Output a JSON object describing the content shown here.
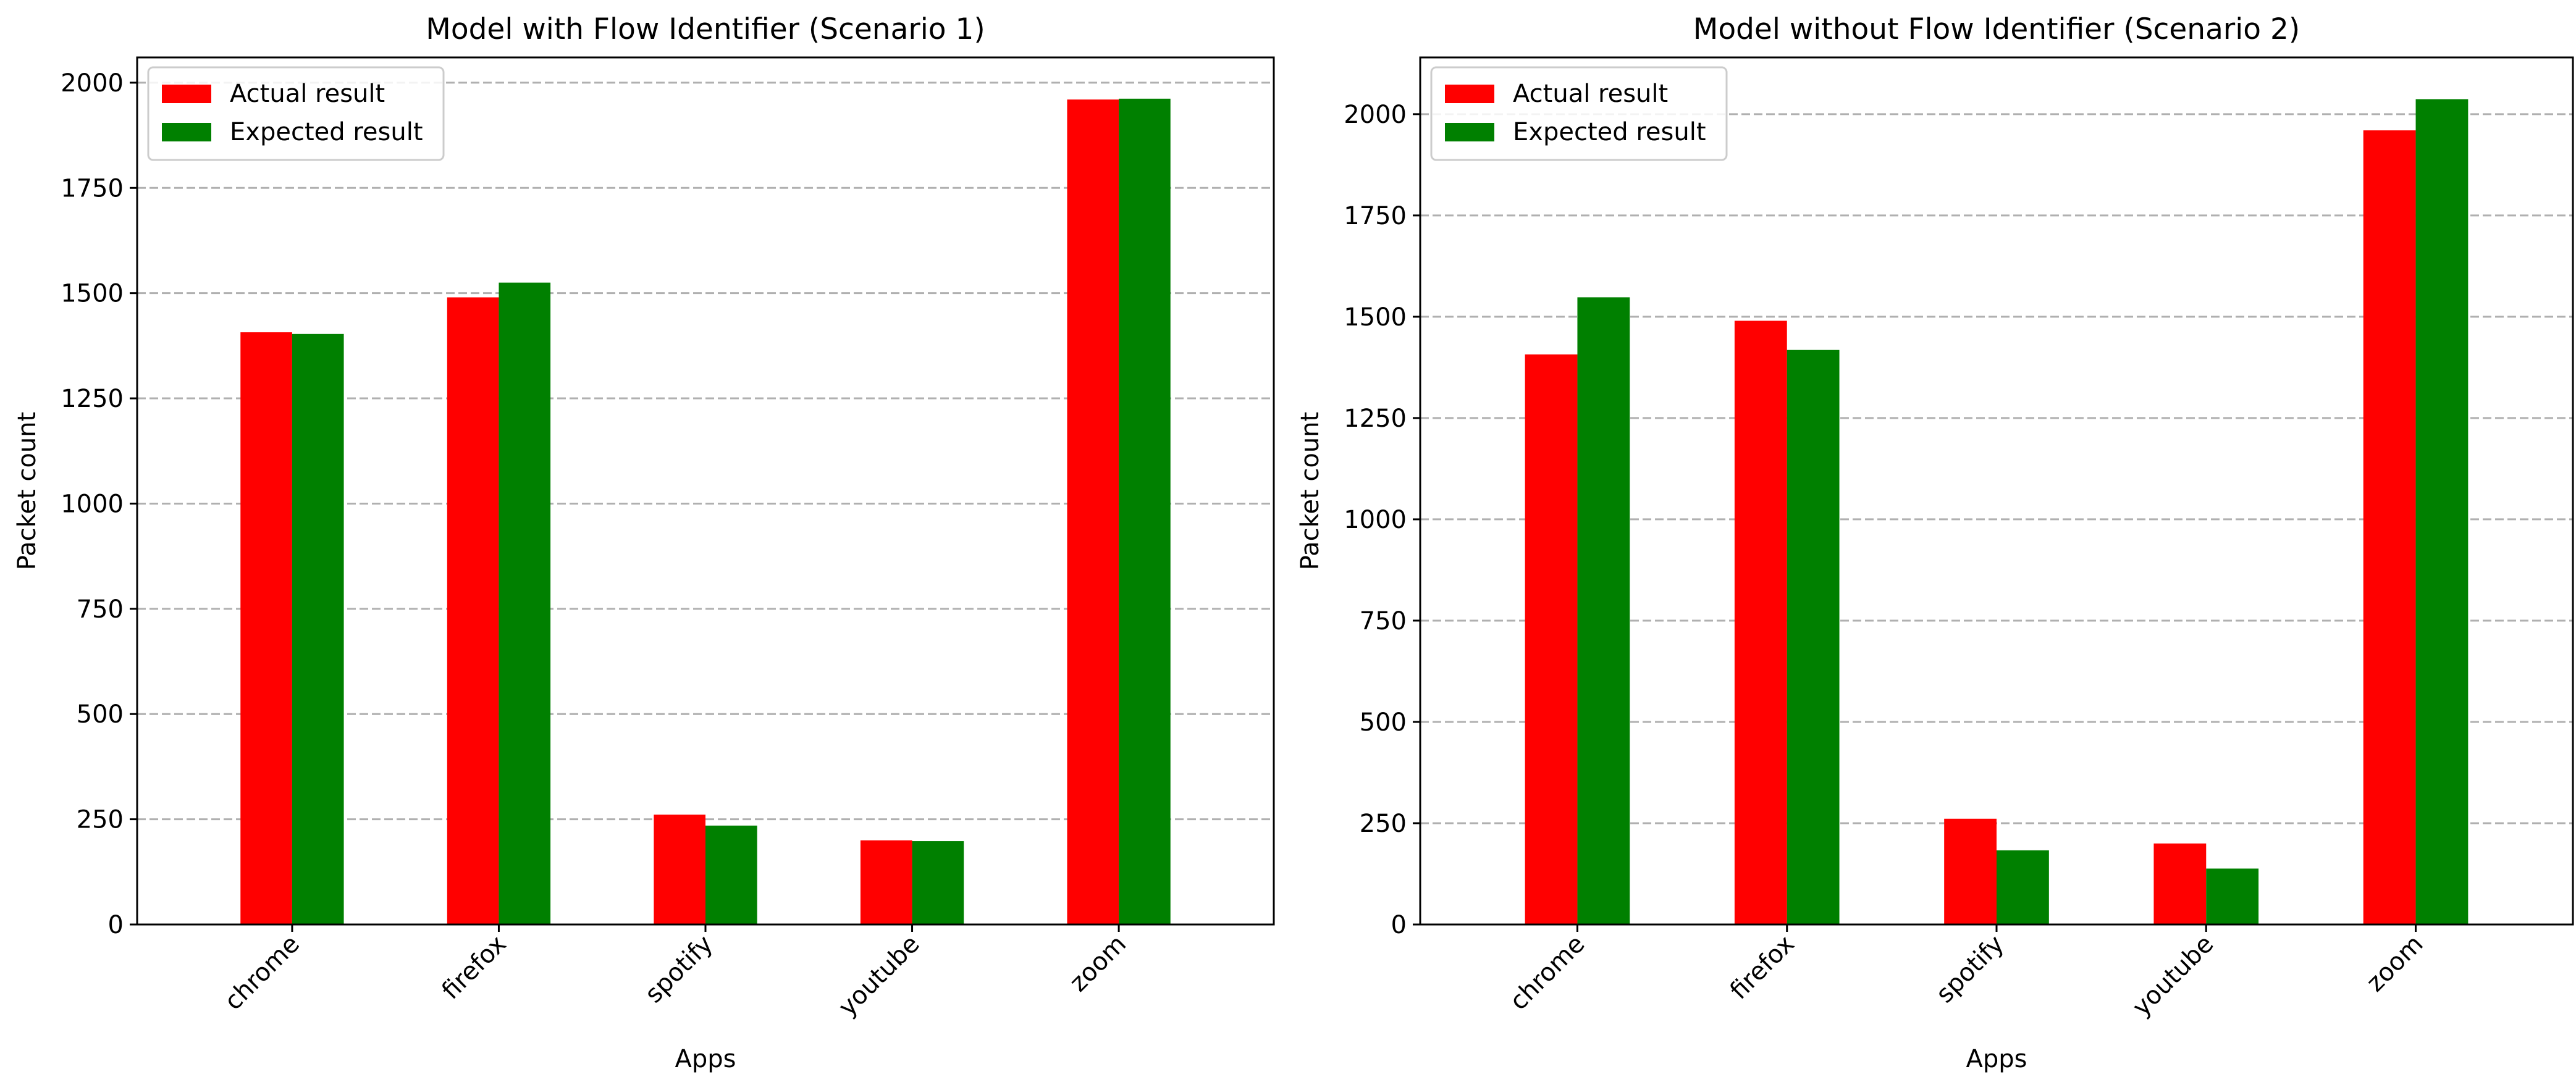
{
  "chart_data": [
    {
      "type": "bar",
      "title": "Model with Flow Identifier (Scenario 1)",
      "xlabel": "Apps",
      "ylabel": "Packet count",
      "categories": [
        "chrome",
        "firefox",
        "spotify",
        "youtube",
        "zoom"
      ],
      "series": [
        {
          "name": "Actual result",
          "color": "#ff0000",
          "values": [
            1407,
            1490,
            261,
            200,
            1960
          ]
        },
        {
          "name": "Expected result",
          "color": "#008000",
          "values": [
            1403,
            1525,
            235,
            198,
            1962
          ]
        }
      ],
      "ylim": [
        0,
        2060
      ],
      "yticks": [
        0,
        250,
        500,
        750,
        1000,
        1250,
        1500,
        1750,
        2000
      ],
      "grid": "y-dashed",
      "legend_position": "top-left"
    },
    {
      "type": "bar",
      "title": "Model without Flow Identifier (Scenario 2)",
      "xlabel": "Apps",
      "ylabel": "Packet count",
      "categories": [
        "chrome",
        "firefox",
        "spotify",
        "youtube",
        "zoom"
      ],
      "series": [
        {
          "name": "Actual result",
          "color": "#ff0000",
          "values": [
            1407,
            1490,
            261,
            200,
            1960
          ]
        },
        {
          "name": "Expected result",
          "color": "#008000",
          "values": [
            1548,
            1418,
            183,
            138,
            2037
          ]
        }
      ],
      "ylim": [
        0,
        2140
      ],
      "yticks": [
        0,
        250,
        500,
        750,
        1000,
        1250,
        1500,
        1750,
        2000
      ],
      "grid": "y-dashed",
      "legend_position": "top-left"
    }
  ]
}
